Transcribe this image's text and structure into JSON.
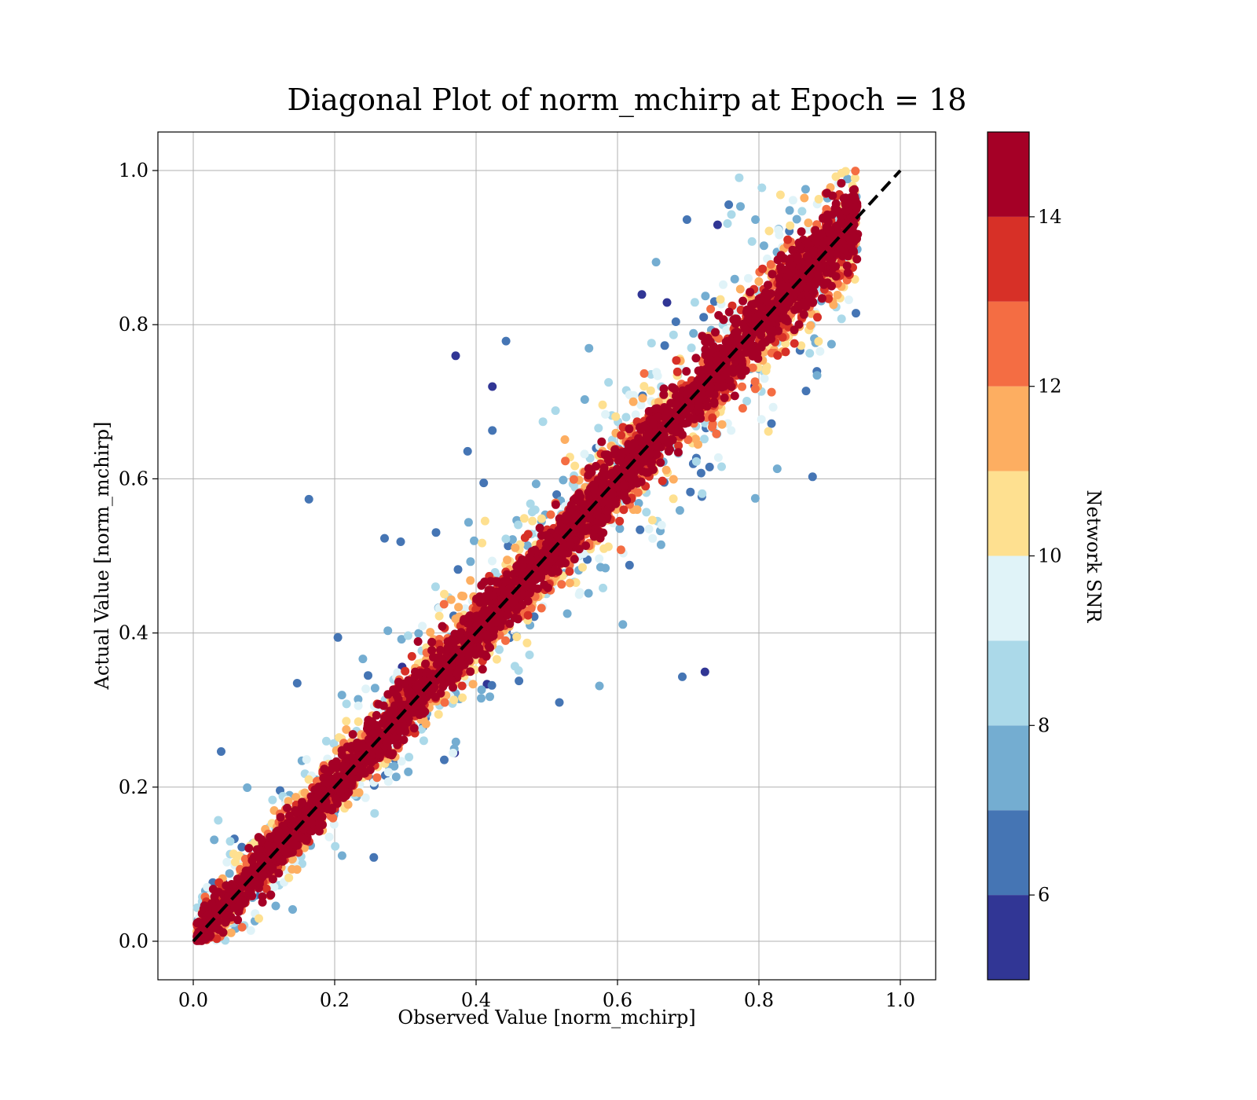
{
  "chart_data": {
    "type": "scatter",
    "title": "Diagonal Plot of norm_mchirp at Epoch = 18",
    "xlabel": "Observed Value [norm_mchirp]",
    "ylabel": "Actual Value [norm_mchirp]",
    "xlim": [
      -0.05,
      1.05
    ],
    "ylim": [
      -0.05,
      1.05
    ],
    "xticks": [
      0.0,
      0.2,
      0.4,
      0.6,
      0.8,
      1.0
    ],
    "xtick_labels": [
      "0.0",
      "0.2",
      "0.4",
      "0.6",
      "0.8",
      "1.0"
    ],
    "yticks": [
      0.0,
      0.2,
      0.4,
      0.6,
      0.8,
      1.0
    ],
    "ytick_labels": [
      "0.0",
      "0.2",
      "0.4",
      "0.6",
      "0.8",
      "1.0"
    ],
    "grid": true,
    "reference_line": {
      "x": [
        0.0,
        1.0
      ],
      "y": [
        0.0,
        1.0
      ],
      "style": "dashed",
      "color": "#000000"
    },
    "observed_range": [
      0.0,
      0.94
    ],
    "actual_range": [
      0.0,
      1.0
    ],
    "point_cloud": {
      "description_of_trend": "points concentrate along y = x; high-SNR points lie close to the diagonal, low-SNR points spread far from it",
      "high_snr_band_halfwidth": 0.06,
      "point_count_estimate": 6000
    },
    "colorbar": {
      "label": "Network SNR",
      "min": 5,
      "max": 15,
      "ticks": [
        6,
        8,
        10,
        12,
        14
      ],
      "tick_labels": [
        "6",
        "8",
        "10",
        "12",
        "14"
      ],
      "levels": [
        5,
        6,
        7,
        8,
        9,
        10,
        11,
        12,
        13,
        14,
        15
      ],
      "colors": [
        "#313695",
        "#4575b4",
        "#74add1",
        "#abd9e9",
        "#e0f3f8",
        "#fee090",
        "#fdae61",
        "#f46d43",
        "#d73027",
        "#a50026"
      ]
    }
  }
}
